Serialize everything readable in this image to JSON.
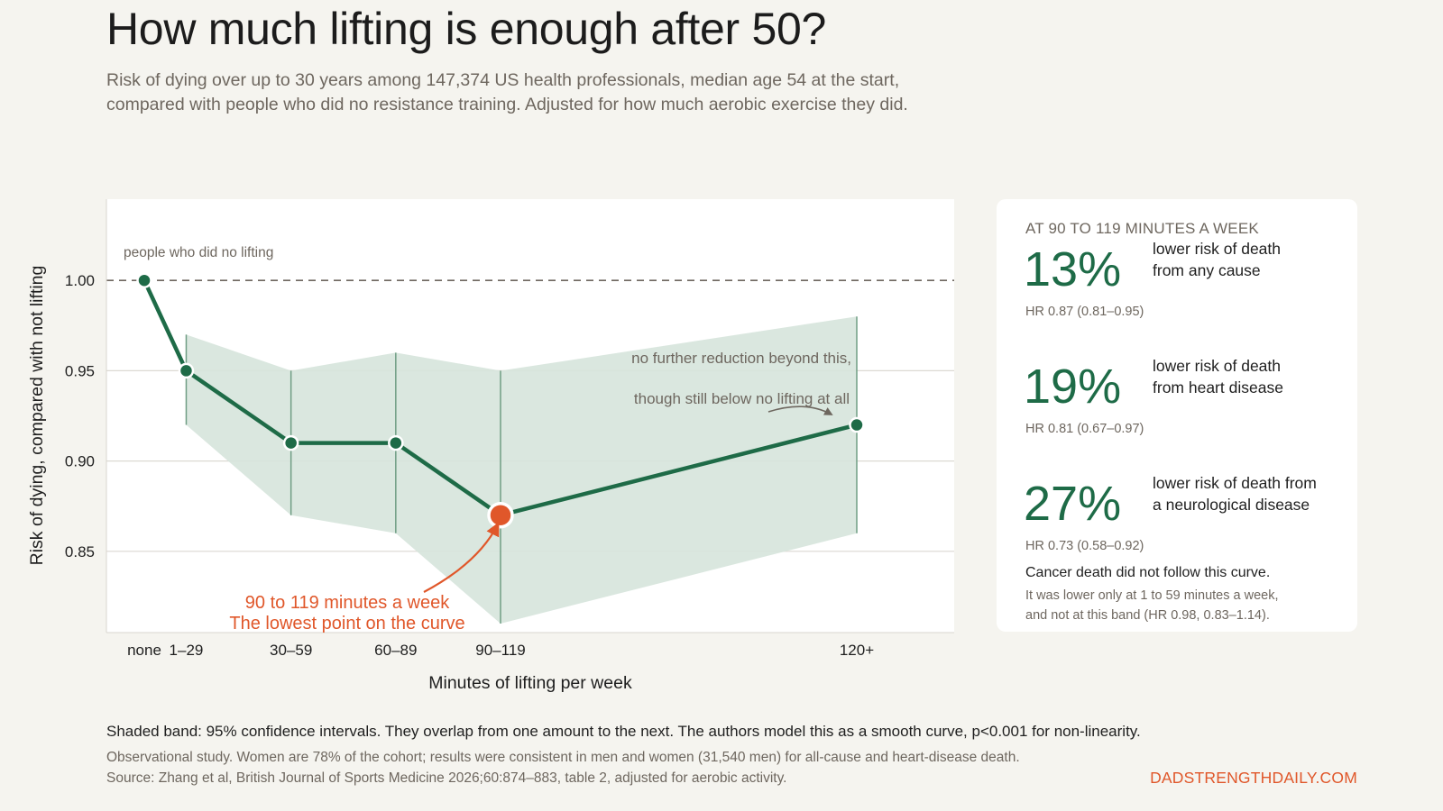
{
  "title": "How much lifting is enough after 50?",
  "subtitle": [
    "Risk of dying over up to 30 years among 147,374 US health professionals, median age 54 at the start,",
    "compared with people who did no resistance training. Adjusted for how much aerobic exercise they did."
  ],
  "colors": {
    "background": "#f5f4ef",
    "line": "#1e6b47",
    "band": "#d6e4dc",
    "highlight": "#e0572a",
    "muted_text": "#6e675f"
  },
  "chart_data": {
    "type": "line",
    "xlabel": "Minutes of lifting per week",
    "ylabel": "Risk of dying, compared with not lifting",
    "categories": [
      "none",
      "1–29",
      "30–59",
      "60–89",
      "90–119",
      "120+"
    ],
    "x_minutes": [
      0,
      20,
      70,
      120,
      170,
      340
    ],
    "series": [
      {
        "values": [
          1.0,
          0.95,
          0.91,
          0.91,
          0.87,
          0.92
        ],
        "ci_lower": [
          null,
          0.92,
          0.87,
          0.86,
          0.81,
          0.86
        ],
        "ci_upper": [
          null,
          0.97,
          0.95,
          0.96,
          0.95,
          0.98
        ]
      }
    ],
    "highlight_index": 4,
    "yticks": [
      0.85,
      0.9,
      0.95,
      1.0
    ],
    "ytick_labels": [
      "0.85",
      "0.90",
      "0.95",
      "1.00"
    ],
    "ylim": [
      0.805,
      1.045
    ],
    "grid": "horizontal",
    "reference_line": {
      "value": 1.0,
      "label": "people who did no lifting"
    },
    "annotations": {
      "lowest_line1": "90 to 119 minutes a week",
      "lowest_line2": "The lowest point on the curve",
      "plateau_line1": "no further reduction beyond this,",
      "plateau_line2": "though still below no lifting at all"
    }
  },
  "panel": {
    "heading": "AT 90 TO 119 MINUTES A WEEK",
    "stats": [
      {
        "value": "13%",
        "desc_line1": "lower risk of death",
        "desc_line2": "from any cause",
        "hr": "HR 0.87 (0.81–0.95)"
      },
      {
        "value": "19%",
        "desc_line1": "lower risk of death",
        "desc_line2": "from heart disease",
        "hr": "HR 0.81 (0.67–0.97)"
      },
      {
        "value": "27%",
        "desc_line1": "lower risk of death from",
        "desc_line2": "a neurological disease",
        "hr": "HR 0.73 (0.58–0.92)"
      }
    ],
    "cancer_title": "Cancer death did not follow this curve.",
    "cancer_body": [
      "It was lower only at 1 to 59 minutes a week,",
      "and not at this band (HR 0.98, 0.83–1.14)."
    ]
  },
  "footer": {
    "note": "Shaded band: 95% confidence intervals. They overlap from one amount to the next. The authors model this as a smooth curve, p<0.001 for non-linearity.",
    "line1": "Observational study. Women are 78% of the cohort; results were consistent in men and women (31,540 men) for all-cause and heart-disease death.",
    "line2": "Source: Zhang et al, British Journal of Sports Medicine 2026;60:874–883, table 2, adjusted for aerobic activity.",
    "brand": "DADSTRENGTHDAILY.COM"
  }
}
